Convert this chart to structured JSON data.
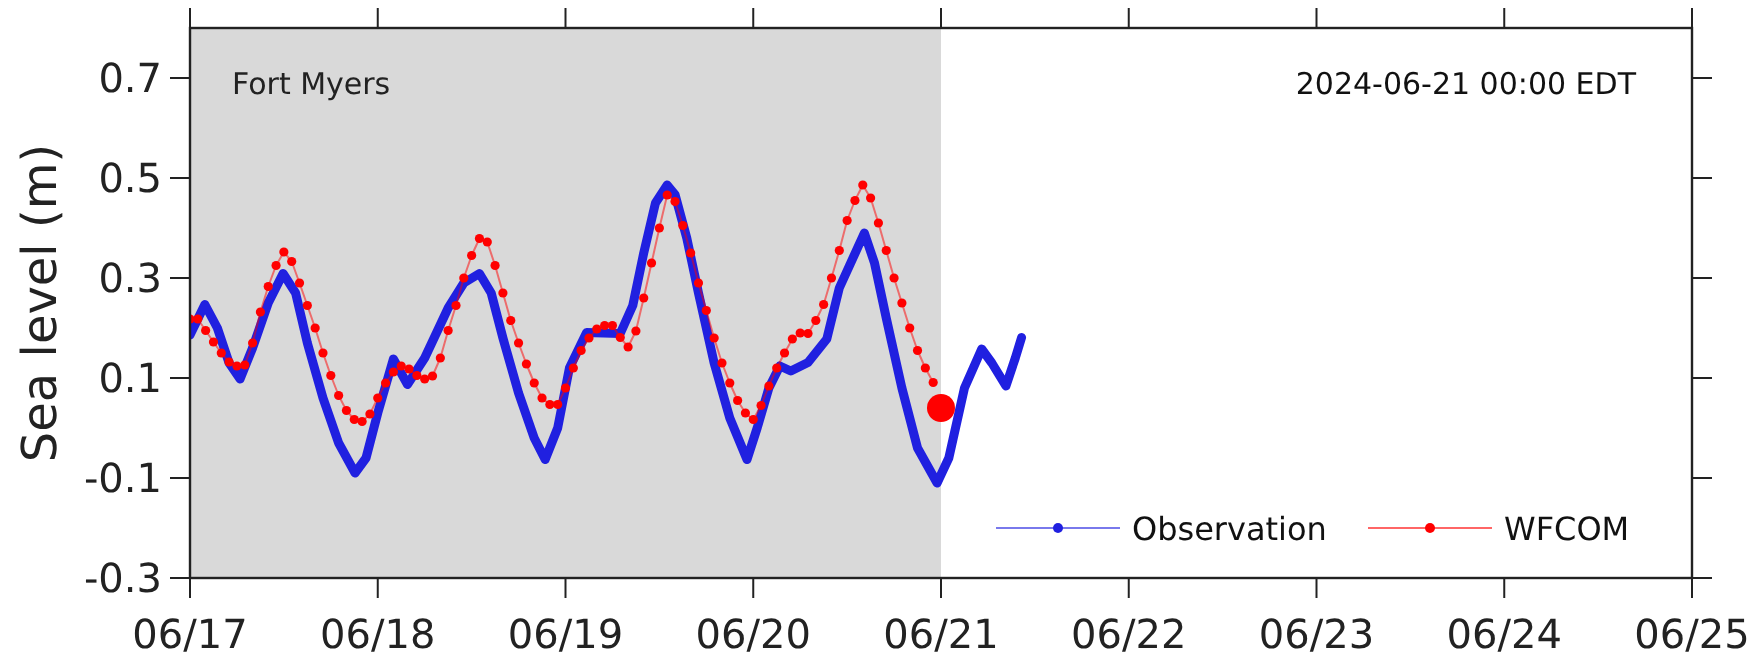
{
  "chart_data": {
    "type": "line",
    "ylabel": "Sea level (m)",
    "annotations": [
      "Fort Myers",
      "2024-06-21 00:00 EDT"
    ],
    "xlim": [
      "2024-06-17",
      "2024-06-25"
    ],
    "xticks": [
      {
        "value": "2024-06-17",
        "label": "06/17"
      },
      {
        "value": "2024-06-18",
        "label": "06/18"
      },
      {
        "value": "2024-06-19",
        "label": "06/19"
      },
      {
        "value": "2024-06-20",
        "label": "06/20"
      },
      {
        "value": "2024-06-21",
        "label": "06/21"
      },
      {
        "value": "2024-06-22",
        "label": "06/22"
      },
      {
        "value": "2024-06-23",
        "label": "06/23"
      },
      {
        "value": "2024-06-24",
        "label": "06/24"
      },
      {
        "value": "2024-06-25",
        "label": "06/25"
      }
    ],
    "ylim": [
      -0.3,
      0.8
    ],
    "yticks": [
      -0.3,
      -0.1,
      0.1,
      0.3,
      0.5,
      0.7
    ],
    "grid": false,
    "legend": "bottom right",
    "bands": [
      {
        "axis": "x",
        "from": "2024-06-17",
        "to": "2024-06-21",
        "color": "#d9d9d9"
      }
    ],
    "series": [
      {
        "name": "Observation",
        "color": "#2020e0",
        "x": [
          "2024-06-17T00:00",
          "2024-06-17T01:54",
          "2024-06-17T03:30",
          "2024-06-17T05:00",
          "2024-06-17T06:24",
          "2024-06-17T08:00",
          "2024-06-17T10:00",
          "2024-06-17T11:54",
          "2024-06-17T13:30",
          "2024-06-17T15:00",
          "2024-06-17T17:00",
          "2024-06-17T19:00",
          "2024-06-17T21:06",
          "2024-06-17T22:30",
          "2024-06-18T00:00",
          "2024-06-18T02:00",
          "2024-06-18T03:48",
          "2024-06-18T06:00",
          "2024-06-18T09:00",
          "2024-06-18T11:00",
          "2024-06-18T13:00",
          "2024-06-18T14:30",
          "2024-06-18T16:00",
          "2024-06-18T18:00",
          "2024-06-18T20:00",
          "2024-06-18T21:24",
          "2024-06-18T23:00",
          "2024-06-19T00:30",
          "2024-06-19T02:42",
          "2024-06-19T07:00",
          "2024-06-19T08:36",
          "2024-06-19T10:00",
          "2024-06-19T11:30",
          "2024-06-19T13:00",
          "2024-06-19T14:00",
          "2024-06-19T15:30",
          "2024-06-19T17:00",
          "2024-06-19T19:00",
          "2024-06-19T21:00",
          "2024-06-19T23:12",
          "2024-06-20T00:30",
          "2024-06-20T02:00",
          "2024-06-20T03:24",
          "2024-06-20T04:48",
          "2024-06-20T07:00",
          "2024-06-20T09:24",
          "2024-06-20T11:00",
          "2024-06-20T14:12",
          "2024-06-20T15:30",
          "2024-06-20T17:00",
          "2024-06-20T19:00",
          "2024-06-20T21:00",
          "2024-06-20T23:30",
          "2024-06-21T01:00",
          "2024-06-21T03:00",
          "2024-06-21T05:12",
          "2024-06-21T06:30",
          "2024-06-21T08:18",
          "2024-06-21T09:30",
          "2024-06-21T10:18"
        ],
        "values": [
          0.186,
          0.247,
          0.2,
          0.13,
          0.098,
          0.16,
          0.25,
          0.309,
          0.27,
          0.17,
          0.06,
          -0.03,
          -0.09,
          -0.06,
          0.03,
          0.138,
          0.087,
          0.14,
          0.24,
          0.29,
          0.309,
          0.27,
          0.18,
          0.07,
          -0.02,
          -0.063,
          0.0,
          0.12,
          0.191,
          0.189,
          0.245,
          0.35,
          0.45,
          0.486,
          0.467,
          0.38,
          0.27,
          0.13,
          0.02,
          -0.063,
          0.0,
          0.08,
          0.124,
          0.114,
          0.131,
          0.178,
          0.28,
          0.39,
          0.33,
          0.22,
          0.08,
          -0.04,
          -0.11,
          -0.06,
          0.08,
          0.158,
          0.13,
          0.084,
          0.14,
          0.181
        ]
      },
      {
        "name": "WFCOM",
        "marker": "circle",
        "color": "#ff0000",
        "x": [
          "2024-06-17T00:00",
          "2024-06-17T01:00",
          "2024-06-17T02:00",
          "2024-06-17T03:00",
          "2024-06-17T04:00",
          "2024-06-17T05:00",
          "2024-06-17T06:00",
          "2024-06-17T07:00",
          "2024-06-17T08:00",
          "2024-06-17T09:00",
          "2024-06-17T10:00",
          "2024-06-17T11:00",
          "2024-06-17T12:00",
          "2024-06-17T13:00",
          "2024-06-17T14:00",
          "2024-06-17T15:00",
          "2024-06-17T16:00",
          "2024-06-17T17:00",
          "2024-06-17T18:00",
          "2024-06-17T19:00",
          "2024-06-17T20:00",
          "2024-06-17T21:00",
          "2024-06-17T22:00",
          "2024-06-17T23:00",
          "2024-06-18T00:00",
          "2024-06-18T01:00",
          "2024-06-18T02:00",
          "2024-06-18T03:00",
          "2024-06-18T04:00",
          "2024-06-18T05:00",
          "2024-06-18T06:00",
          "2024-06-18T07:00",
          "2024-06-18T08:00",
          "2024-06-18T09:00",
          "2024-06-18T10:00",
          "2024-06-18T11:00",
          "2024-06-18T12:00",
          "2024-06-18T13:00",
          "2024-06-18T14:00",
          "2024-06-18T15:00",
          "2024-06-18T16:00",
          "2024-06-18T17:00",
          "2024-06-18T18:00",
          "2024-06-18T19:00",
          "2024-06-18T20:00",
          "2024-06-18T21:00",
          "2024-06-18T22:00",
          "2024-06-18T23:00",
          "2024-06-19T00:00",
          "2024-06-19T01:00",
          "2024-06-19T02:00",
          "2024-06-19T03:00",
          "2024-06-19T04:00",
          "2024-06-19T05:00",
          "2024-06-19T06:00",
          "2024-06-19T07:00",
          "2024-06-19T08:00",
          "2024-06-19T09:00",
          "2024-06-19T10:00",
          "2024-06-19T11:00",
          "2024-06-19T12:00",
          "2024-06-19T13:00",
          "2024-06-19T14:00",
          "2024-06-19T15:00",
          "2024-06-19T16:00",
          "2024-06-19T17:00",
          "2024-06-19T18:00",
          "2024-06-19T19:00",
          "2024-06-19T20:00",
          "2024-06-19T21:00",
          "2024-06-19T22:00",
          "2024-06-19T23:00",
          "2024-06-20T00:00",
          "2024-06-20T01:00",
          "2024-06-20T02:00",
          "2024-06-20T03:00",
          "2024-06-20T04:00",
          "2024-06-20T05:00",
          "2024-06-20T06:00",
          "2024-06-20T07:00",
          "2024-06-20T08:00",
          "2024-06-20T09:00",
          "2024-06-20T10:00",
          "2024-06-20T11:00",
          "2024-06-20T12:00",
          "2024-06-20T13:00",
          "2024-06-20T14:00",
          "2024-06-20T15:00",
          "2024-06-20T16:00",
          "2024-06-20T17:00",
          "2024-06-20T18:00",
          "2024-06-20T19:00",
          "2024-06-20T20:00",
          "2024-06-20T21:00",
          "2024-06-20T22:00",
          "2024-06-20T23:00"
        ],
        "values": [
          0.218,
          0.218,
          0.195,
          0.172,
          0.15,
          0.132,
          0.124,
          0.126,
          0.17,
          0.232,
          0.283,
          0.325,
          0.352,
          0.333,
          0.29,
          0.245,
          0.2,
          0.15,
          0.105,
          0.065,
          0.035,
          0.017,
          0.013,
          0.028,
          0.06,
          0.09,
          0.112,
          0.124,
          0.118,
          0.105,
          0.098,
          0.104,
          0.14,
          0.195,
          0.245,
          0.3,
          0.345,
          0.379,
          0.372,
          0.325,
          0.27,
          0.215,
          0.17,
          0.128,
          0.09,
          0.06,
          0.047,
          0.047,
          0.08,
          0.12,
          0.155,
          0.18,
          0.198,
          0.205,
          0.205,
          0.181,
          0.162,
          0.194,
          0.26,
          0.33,
          0.4,
          0.466,
          0.453,
          0.405,
          0.35,
          0.29,
          0.235,
          0.18,
          0.13,
          0.09,
          0.055,
          0.03,
          0.017,
          0.045,
          0.084,
          0.12,
          0.15,
          0.178,
          0.19,
          0.189,
          0.215,
          0.247,
          0.3,
          0.355,
          0.415,
          0.455,
          0.486,
          0.46,
          0.41,
          0.355,
          0.3,
          0.25,
          0.2,
          0.155,
          0.12,
          0.091
        ]
      },
      {
        "type": "scatter",
        "marker": "circle",
        "color": "#ff0000",
        "x": [
          "2024-06-21T00:00"
        ],
        "values": [
          0.04
        ]
      }
    ]
  }
}
